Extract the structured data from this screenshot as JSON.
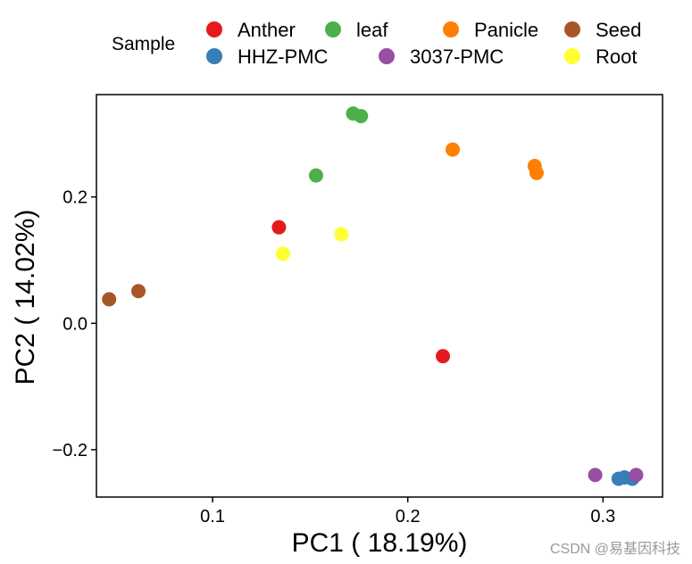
{
  "chart_data": {
    "type": "scatter",
    "title": "",
    "xlabel": "PC1 ( 18.19%)",
    "ylabel": "PC2 ( 14.02%)",
    "xlim": [
      0.0405,
      0.3305
    ],
    "ylim": [
      -0.275,
      0.362
    ],
    "x_ticks": [
      0.1,
      0.2,
      0.3
    ],
    "x_tick_labels": [
      "0.1",
      "0.2",
      "0.3"
    ],
    "y_ticks": [
      -0.2,
      0.0,
      0.2
    ],
    "y_tick_labels": [
      "-0.2",
      "0.0",
      "0.2"
    ],
    "grid": false,
    "legend": {
      "title": "Sample",
      "position": "top",
      "entries": [
        {
          "name": "Anther",
          "color": "#E41A1C"
        },
        {
          "name": "leaf",
          "color": "#4DAF4A"
        },
        {
          "name": "Panicle",
          "color": "#FF7F00"
        },
        {
          "name": "Seed",
          "color": "#A65628"
        },
        {
          "name": "HHZ-PMC",
          "color": "#377EB8"
        },
        {
          "name": "3037-PMC",
          "color": "#984EA3"
        },
        {
          "name": "Root",
          "color": "#FFFF33"
        }
      ]
    },
    "series": [
      {
        "name": "Anther",
        "color": "#E41A1C",
        "points": [
          [
            0.134,
            0.152
          ],
          [
            0.218,
            -0.052
          ]
        ]
      },
      {
        "name": "leaf",
        "color": "#4DAF4A",
        "points": [
          [
            0.153,
            0.234
          ],
          [
            0.172,
            0.332
          ],
          [
            0.176,
            0.328
          ]
        ]
      },
      {
        "name": "Panicle",
        "color": "#FF7F00",
        "points": [
          [
            0.223,
            0.275
          ],
          [
            0.265,
            0.249
          ],
          [
            0.266,
            0.238
          ]
        ]
      },
      {
        "name": "Seed",
        "color": "#A65628",
        "points": [
          [
            0.047,
            0.038
          ],
          [
            0.062,
            0.051
          ]
        ]
      },
      {
        "name": "HHZ-PMC",
        "color": "#377EB8",
        "points": [
          [
            0.308,
            -0.246
          ],
          [
            0.311,
            -0.244
          ],
          [
            0.315,
            -0.246
          ]
        ]
      },
      {
        "name": "3037-PMC",
        "color": "#984EA3",
        "points": [
          [
            0.296,
            -0.24
          ],
          [
            0.317,
            -0.24
          ]
        ]
      },
      {
        "name": "Root",
        "color": "#FFFF33",
        "points": [
          [
            0.136,
            0.11
          ],
          [
            0.166,
            0.141
          ]
        ]
      }
    ]
  },
  "watermark": "CSDN @易基因科技"
}
